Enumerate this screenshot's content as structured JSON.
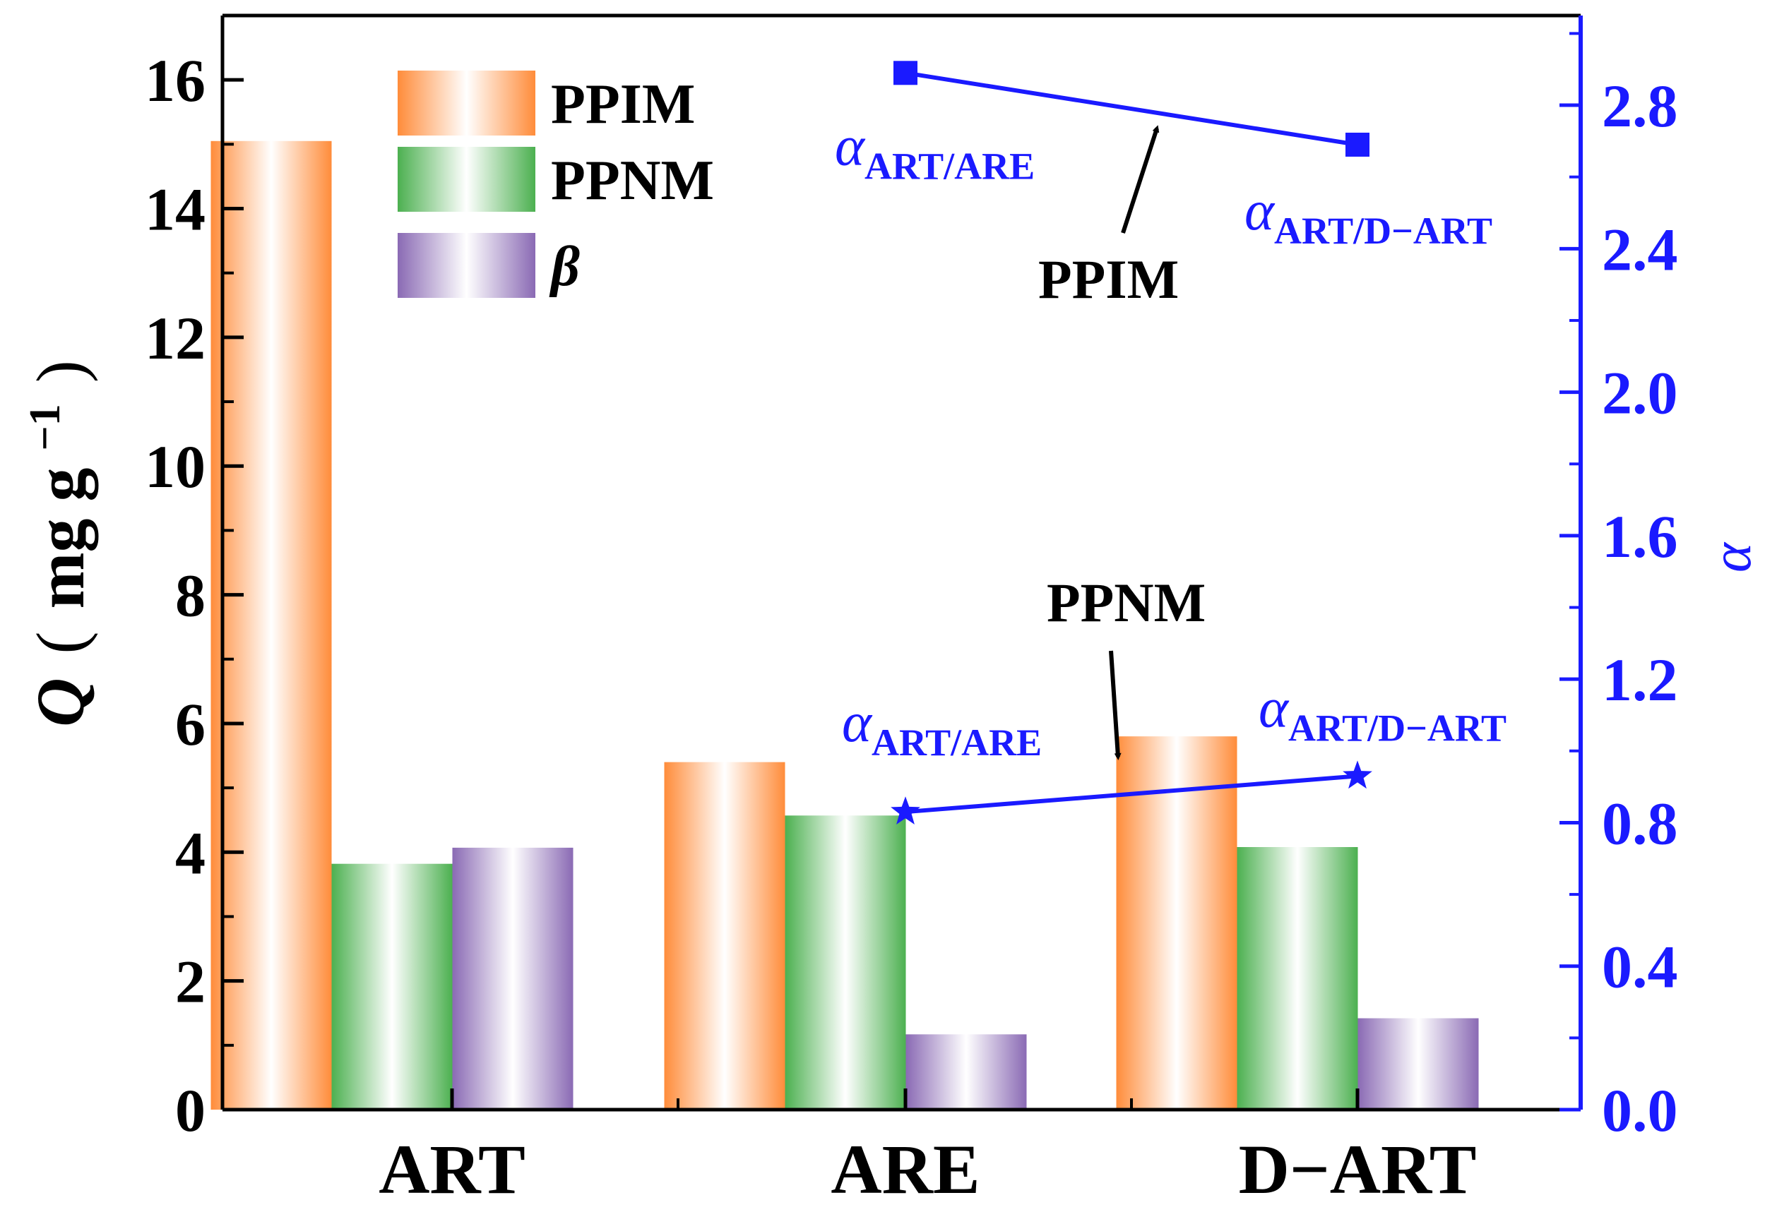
{
  "chart_data": {
    "type": "bar",
    "categories": [
      "ART",
      "ARE",
      "D−ART"
    ],
    "series": [
      {
        "name": "PPIM",
        "values": [
          15.05,
          5.4,
          5.8
        ],
        "color": "#ff8c3a"
      },
      {
        "name": "PPNM",
        "values": [
          3.82,
          4.57,
          4.08
        ],
        "color": "#4cb050"
      },
      {
        "name": "β",
        "values": [
          4.07,
          1.17,
          1.42
        ],
        "color": "#8a6ab4"
      }
    ],
    "ylabel_main": "Q",
    "ylabel_unit_open": "(",
    "ylabel_unit": "mg g",
    "ylabel_unit_exp": "−1",
    "ylabel_unit_close": ")",
    "ylim": [
      0,
      17
    ],
    "yticks": [
      "0",
      "2",
      "4",
      "6",
      "8",
      "10",
      "12",
      "14",
      "16"
    ],
    "y2label": "α",
    "y2lim": [
      0,
      3.05
    ],
    "y2ticks": [
      "0.0",
      "0.4",
      "0.8",
      "1.2",
      "1.6",
      "2.0",
      "2.4",
      "2.8"
    ],
    "lines": [
      {
        "name": "PPIM",
        "marker": "square",
        "color": "#1a1aff",
        "x": [
          "ARE",
          "D−ART"
        ],
        "y": [
          2.89,
          2.69
        ],
        "point_labels": [
          {
            "symbol": "α",
            "sub": "ART/ARE"
          },
          {
            "symbol": "α",
            "sub": "ART/D−ART"
          }
        ]
      },
      {
        "name": "PPNM",
        "marker": "star",
        "color": "#1a1aff",
        "x": [
          "ARE",
          "D−ART"
        ],
        "y": [
          0.83,
          0.93
        ],
        "point_labels": [
          {
            "symbol": "α",
            "sub": "ART/ARE"
          },
          {
            "symbol": "α",
            "sub": "ART/D−ART"
          }
        ]
      }
    ],
    "annotations": [
      "PPIM",
      "PPNM"
    ],
    "legend_position": "top-left",
    "grid": false
  }
}
